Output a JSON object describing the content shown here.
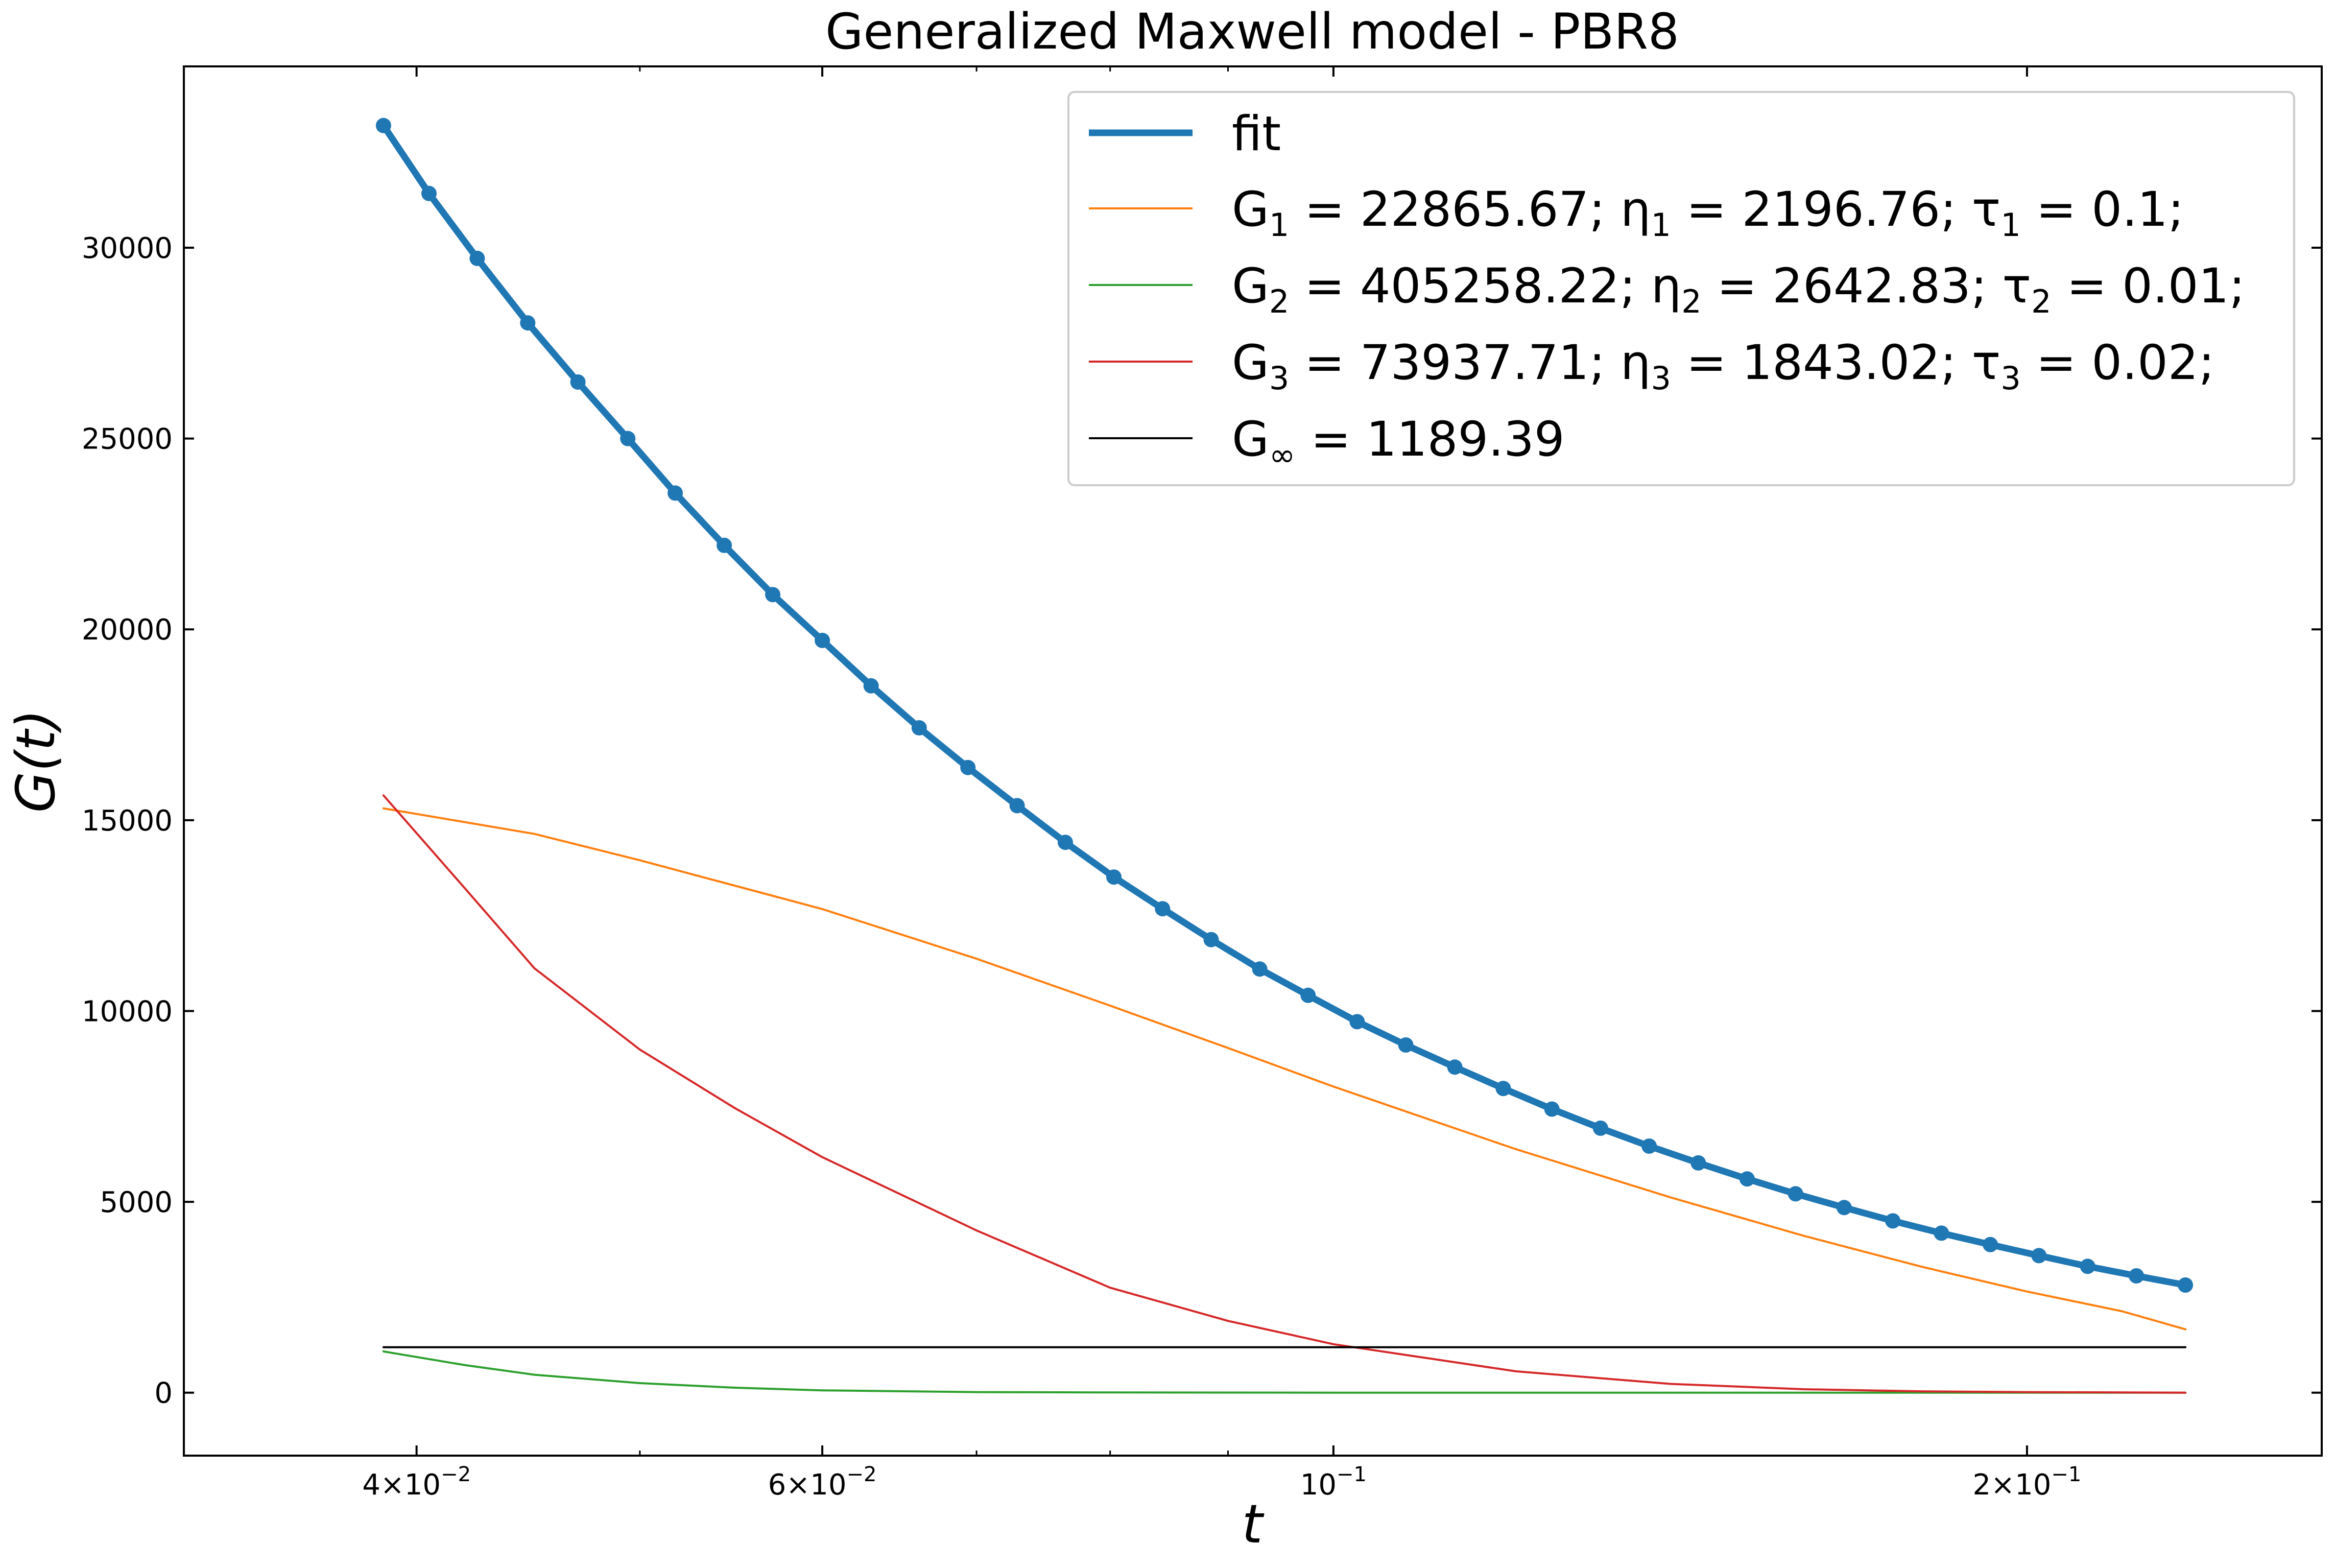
{
  "chart_data": {
    "type": "line",
    "title": "Generalized Maxwell model - PBR8",
    "xlabel": "t",
    "ylabel": "G(t)",
    "xscale": "log",
    "xlim": [
      0.0317,
      0.2685
    ],
    "ylim": [
      -1650,
      34750
    ],
    "grid": false,
    "legend_position": "top-right",
    "x_ticks": [
      {
        "value": 0.04,
        "mantissa": "4",
        "exponent": "-2"
      },
      {
        "value": 0.06,
        "mantissa": "6",
        "exponent": "-2"
      },
      {
        "value": 0.1,
        "mantissa": "",
        "exponent": "-1"
      },
      {
        "value": 0.2,
        "mantissa": "2",
        "exponent": "-1"
      }
    ],
    "x_minor_ticks": [
      0.05,
      0.07,
      0.08,
      0.09
    ],
    "y_ticks": [
      {
        "value": 0,
        "label": "0"
      },
      {
        "value": 5000,
        "label": "5000"
      },
      {
        "value": 10000,
        "label": "10000"
      },
      {
        "value": 15000,
        "label": "15000"
      },
      {
        "value": 20000,
        "label": "20000"
      },
      {
        "value": 25000,
        "label": "25000"
      },
      {
        "value": 30000,
        "label": "30000"
      }
    ],
    "model": {
      "G_inf": 1189.39,
      "elements": [
        {
          "G": 22865.67,
          "eta": 2196.76,
          "tau": 0.1
        },
        {
          "G": 405258.22,
          "eta": 2642.83,
          "tau": 0.01
        },
        {
          "G": 73937.71,
          "eta": 1843.02,
          "tau": 0.02
        }
      ]
    },
    "series": [
      {
        "name": "fit",
        "color": "#1f77b4",
        "points": [
          [
            0.0387,
            33200
          ],
          [
            0.0405,
            31420
          ],
          [
            0.0425,
            29720
          ],
          [
            0.0447,
            28030
          ],
          [
            0.047,
            26480
          ],
          [
            0.0494,
            25000
          ],
          [
            0.0518,
            23570
          ],
          [
            0.0544,
            22200
          ],
          [
            0.0571,
            20910
          ],
          [
            0.06,
            19710
          ],
          [
            0.063,
            18520
          ],
          [
            0.0661,
            17420
          ],
          [
            0.0694,
            16380
          ],
          [
            0.0729,
            15380
          ],
          [
            0.0765,
            14420
          ],
          [
            0.0803,
            13510
          ],
          [
            0.0843,
            12680
          ],
          [
            0.0885,
            11870
          ],
          [
            0.0929,
            11100
          ],
          [
            0.0975,
            10410
          ],
          [
            0.1024,
            9720
          ],
          [
            0.1075,
            9110
          ],
          [
            0.1129,
            8530
          ],
          [
            0.1185,
            7970
          ],
          [
            0.1244,
            7430
          ],
          [
            0.1306,
            6930
          ],
          [
            0.1371,
            6460
          ],
          [
            0.144,
            6020
          ],
          [
            0.1512,
            5600
          ],
          [
            0.1587,
            5210
          ],
          [
            0.1666,
            4850
          ],
          [
            0.1749,
            4500
          ],
          [
            0.1836,
            4180
          ],
          [
            0.1928,
            3880
          ],
          [
            0.2024,
            3590
          ],
          [
            0.2125,
            3310
          ],
          [
            0.2231,
            3060
          ],
          [
            0.2343,
            2820
          ]
        ]
      },
      {
        "name": "G_{1} = 22865.67; η_{1} = 2196.76; τ_{1} = 0.1;",
        "color": "#ff7f0e",
        "points": [
          [
            0.0387,
            15310
          ],
          [
            0.045,
            14640
          ],
          [
            0.05,
            13950
          ],
          [
            0.06,
            12670
          ],
          [
            0.07,
            11370
          ],
          [
            0.08,
            10140
          ],
          [
            0.09,
            9030
          ],
          [
            0.1,
            8020
          ],
          [
            0.12,
            6380
          ],
          [
            0.14,
            5120
          ],
          [
            0.16,
            4110
          ],
          [
            0.18,
            3300
          ],
          [
            0.2,
            2650
          ],
          [
            0.22,
            2130
          ],
          [
            0.2343,
            1660
          ]
        ]
      },
      {
        "name": "G_{2} = 405258.22; η_{2} = 2642.83; τ_{2} = 0.01;",
        "color": "#2ca02c",
        "points": [
          [
            0.0387,
            1080
          ],
          [
            0.042,
            720
          ],
          [
            0.045,
            470
          ],
          [
            0.05,
            250
          ],
          [
            0.055,
            130
          ],
          [
            0.06,
            60
          ],
          [
            0.07,
            15
          ],
          [
            0.08,
            5
          ],
          [
            0.1,
            0
          ],
          [
            0.2343,
            0
          ]
        ]
      },
      {
        "name": "G_{3} = 73937.71; η_{3} = 1843.02; τ_{3} = 0.02;",
        "color": "#d62728",
        "points": [
          [
            0.0387,
            15650
          ],
          [
            0.042,
            13200
          ],
          [
            0.045,
            11120
          ],
          [
            0.05,
            8990
          ],
          [
            0.055,
            7450
          ],
          [
            0.06,
            6170
          ],
          [
            0.07,
            4250
          ],
          [
            0.08,
            2750
          ],
          [
            0.09,
            1880
          ],
          [
            0.1,
            1270
          ],
          [
            0.12,
            560
          ],
          [
            0.14,
            230
          ],
          [
            0.16,
            90
          ],
          [
            0.18,
            35
          ],
          [
            0.2,
            15
          ],
          [
            0.2343,
            0
          ]
        ]
      },
      {
        "name": "G_{∞} = 1189.39",
        "color": "#000000",
        "points": [
          [
            0.0387,
            1189.39
          ],
          [
            0.2343,
            1189.39
          ]
        ]
      }
    ]
  }
}
